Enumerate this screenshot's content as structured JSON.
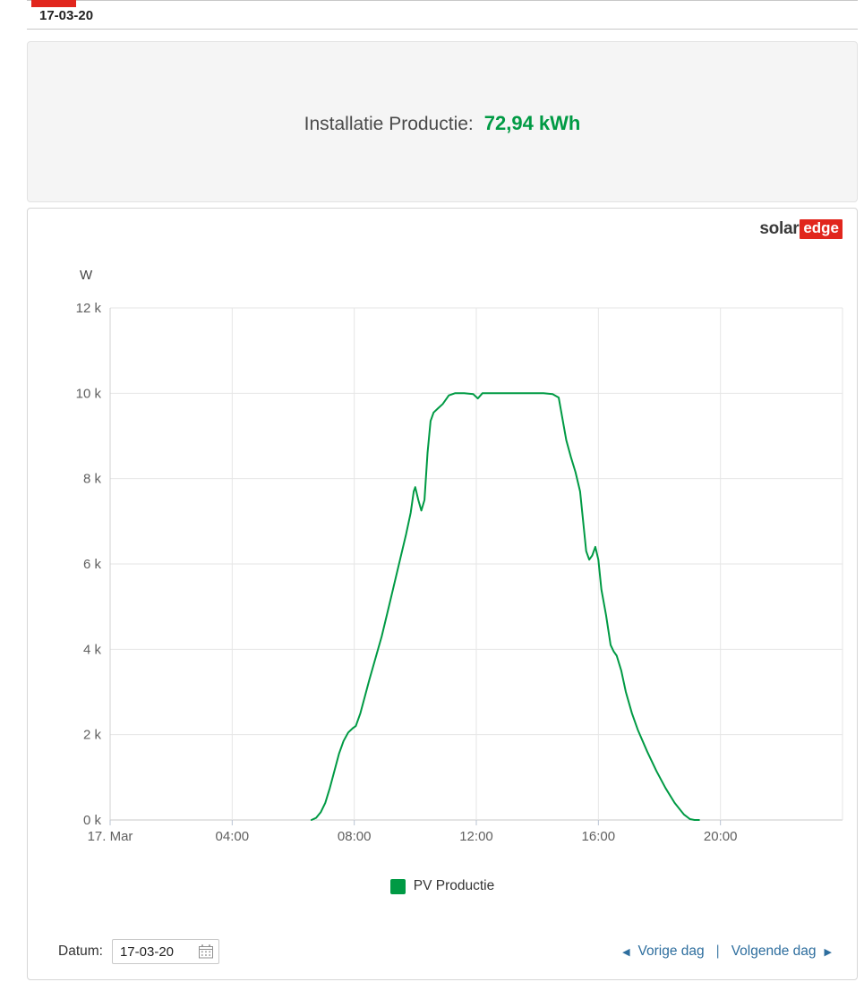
{
  "window": {
    "date_tab": "17-03-20"
  },
  "summary": {
    "label": "Installatie Productie:",
    "value": "72,94 kWh"
  },
  "logo": {
    "solar": "solar",
    "edge": "edge"
  },
  "chart_data": {
    "type": "line",
    "title": "",
    "xlabel": "",
    "ylabel": "W",
    "grid": true,
    "legend_position": "bottom",
    "xlim": [
      0,
      24
    ],
    "ylim": [
      0,
      12000
    ],
    "x_ticks": [
      "17. Mar",
      "04:00",
      "08:00",
      "12:00",
      "16:00",
      "20:00"
    ],
    "x_tick_values": [
      0,
      4,
      8,
      12,
      16,
      20
    ],
    "y_ticks": [
      "12 k",
      "10 k",
      "8 k",
      "6 k",
      "4 k",
      "2 k",
      "0 k"
    ],
    "y_tick_values": [
      12000,
      10000,
      8000,
      6000,
      4000,
      2000,
      0
    ],
    "series": [
      {
        "name": "PV Productie",
        "color": "#009A44",
        "unit": "W",
        "points": [
          [
            6.6,
            0
          ],
          [
            6.75,
            50
          ],
          [
            6.9,
            180
          ],
          [
            7.05,
            400
          ],
          [
            7.2,
            750
          ],
          [
            7.35,
            1150
          ],
          [
            7.5,
            1550
          ],
          [
            7.65,
            1850
          ],
          [
            7.8,
            2050
          ],
          [
            7.95,
            2150
          ],
          [
            8.05,
            2200
          ],
          [
            8.2,
            2500
          ],
          [
            8.35,
            2900
          ],
          [
            8.5,
            3300
          ],
          [
            8.7,
            3800
          ],
          [
            8.9,
            4300
          ],
          [
            9.1,
            4900
          ],
          [
            9.3,
            5500
          ],
          [
            9.5,
            6100
          ],
          [
            9.7,
            6700
          ],
          [
            9.85,
            7200
          ],
          [
            9.95,
            7700
          ],
          [
            10.0,
            7800
          ],
          [
            10.1,
            7500
          ],
          [
            10.2,
            7250
          ],
          [
            10.3,
            7500
          ],
          [
            10.4,
            8600
          ],
          [
            10.5,
            9350
          ],
          [
            10.6,
            9550
          ],
          [
            10.75,
            9650
          ],
          [
            10.9,
            9750
          ],
          [
            11.1,
            9950
          ],
          [
            11.3,
            10000
          ],
          [
            11.6,
            10000
          ],
          [
            11.9,
            9980
          ],
          [
            12.05,
            9880
          ],
          [
            12.2,
            10000
          ],
          [
            12.6,
            10000
          ],
          [
            13.0,
            10000
          ],
          [
            13.4,
            10000
          ],
          [
            13.8,
            10000
          ],
          [
            14.2,
            10000
          ],
          [
            14.5,
            9980
          ],
          [
            14.7,
            9900
          ],
          [
            14.8,
            9500
          ],
          [
            14.95,
            8900
          ],
          [
            15.1,
            8500
          ],
          [
            15.25,
            8150
          ],
          [
            15.4,
            7700
          ],
          [
            15.5,
            7000
          ],
          [
            15.6,
            6300
          ],
          [
            15.7,
            6100
          ],
          [
            15.8,
            6200
          ],
          [
            15.9,
            6400
          ],
          [
            16.0,
            6100
          ],
          [
            16.1,
            5400
          ],
          [
            16.25,
            4800
          ],
          [
            16.4,
            4100
          ],
          [
            16.5,
            3950
          ],
          [
            16.6,
            3850
          ],
          [
            16.75,
            3500
          ],
          [
            16.9,
            3000
          ],
          [
            17.1,
            2500
          ],
          [
            17.3,
            2100
          ],
          [
            17.6,
            1600
          ],
          [
            17.9,
            1150
          ],
          [
            18.2,
            750
          ],
          [
            18.5,
            400
          ],
          [
            18.8,
            130
          ],
          [
            19.0,
            20
          ],
          [
            19.15,
            0
          ],
          [
            19.3,
            0
          ]
        ]
      }
    ]
  },
  "footer": {
    "date_label": "Datum:",
    "date_value": "17-03-20",
    "prev_icon": "◀",
    "prev_label": "Vorige dag",
    "separator": "|",
    "next_label": "Volgende dag",
    "next_icon": "▶"
  },
  "colors": {
    "production_green": "#009A44",
    "brand_red": "#E1261D",
    "link_blue": "#2E6E9E"
  }
}
